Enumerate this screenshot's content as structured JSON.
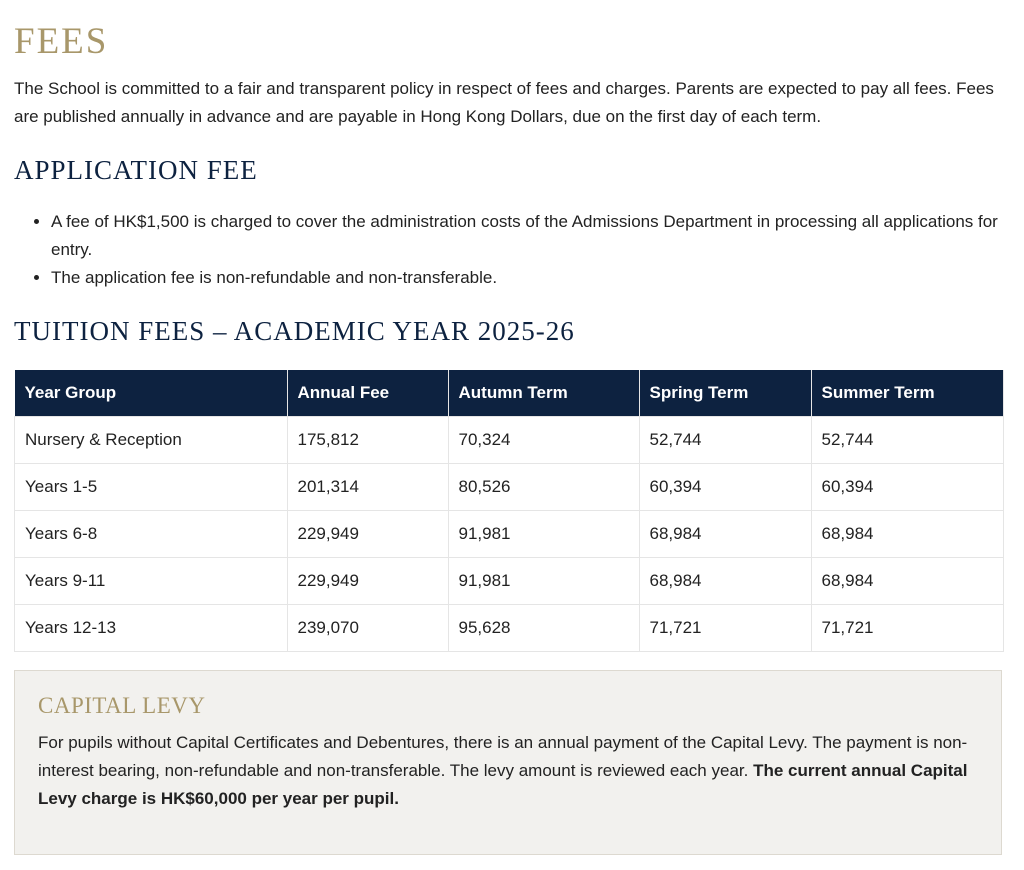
{
  "title": "FEES",
  "intro": "The School is committed to a fair and transparent policy in respect of fees and charges. Parents are expected to pay all fees. Fees are published annually in advance and are payable in Hong Kong Dollars, due on the first day of each term.",
  "application": {
    "heading": "APPLICATION FEE",
    "items": [
      "A fee of HK$1,500 is charged to cover the administration costs of the Admissions Department in processing all applications for entry.",
      "The application fee is non-refundable and non-transferable."
    ]
  },
  "tuition": {
    "heading": "TUITION FEES – ACADEMIC YEAR 2025-26",
    "columns": [
      "Year Group",
      "Annual Fee",
      "Autumn Term",
      "Spring Term",
      "Summer Term"
    ],
    "rows": [
      [
        "Nursery & Reception",
        "175,812",
        "70,324",
        "52,744",
        "52,744"
      ],
      [
        "Years 1-5",
        "201,314",
        "80,526",
        "60,394",
        "60,394"
      ],
      [
        "Years 6-8",
        "229,949",
        "91,981",
        "68,984",
        "68,984"
      ],
      [
        "Years 9-11",
        "229,949",
        "91,981",
        "68,984",
        "68,984"
      ],
      [
        "Years 12-13",
        "239,070",
        "95,628",
        "71,721",
        "71,721"
      ]
    ]
  },
  "levy": {
    "heading": "CAPITAL LEVY",
    "text": "For pupils without Capital Certificates and Debentures, there is an annual payment of the Capital Levy. The payment is non-interest bearing, non-refundable and non-transferable. The levy amount is reviewed each year. ",
    "bold": "The current annual Capital Levy charge is HK$60,000 per year per pupil."
  },
  "colors": {
    "gold": "#a8976a",
    "navy": "#0d2240",
    "panel": "#f2f1ee"
  }
}
